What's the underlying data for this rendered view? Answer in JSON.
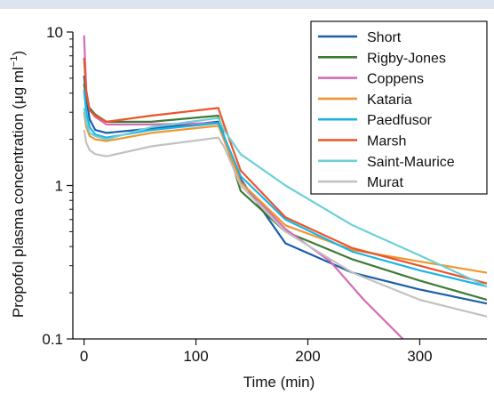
{
  "chart_data": {
    "type": "line",
    "xlabel": "Time (min)",
    "ylabel_main": "Propofol plasma concentration (μg ml",
    "ylabel_sup": "−1",
    "ylabel_close": ")",
    "xlim": [
      -10,
      360
    ],
    "ylim": [
      0.1,
      10
    ],
    "yscale": "log",
    "x_ticks": [
      0,
      100,
      200,
      300
    ],
    "x_tick_labels": [
      "0",
      "100",
      "200",
      "300"
    ],
    "y_ticks": [
      0.1,
      1,
      10
    ],
    "y_tick_labels": [
      "0.1",
      "1",
      "10"
    ],
    "grid": false,
    "legend_position": "top-right",
    "series": [
      {
        "name": "Short",
        "color": "#1a5ea8",
        "points": [
          [
            0,
            5.2
          ],
          [
            2,
            3.7
          ],
          [
            5,
            2.7
          ],
          [
            10,
            2.3
          ],
          [
            20,
            2.2
          ],
          [
            60,
            2.35
          ],
          [
            120,
            2.6
          ],
          [
            125,
            2.1
          ],
          [
            140,
            1.1
          ],
          [
            180,
            0.42
          ],
          [
            240,
            0.27
          ],
          [
            300,
            0.21
          ],
          [
            360,
            0.17
          ]
        ]
      },
      {
        "name": "Rigby-Jones",
        "color": "#3f7a35",
        "points": [
          [
            0,
            4.6
          ],
          [
            2,
            3.6
          ],
          [
            5,
            3.2
          ],
          [
            10,
            2.9
          ],
          [
            20,
            2.6
          ],
          [
            60,
            2.6
          ],
          [
            120,
            2.85
          ],
          [
            125,
            2.1
          ],
          [
            140,
            0.92
          ],
          [
            180,
            0.5
          ],
          [
            240,
            0.33
          ],
          [
            300,
            0.24
          ],
          [
            360,
            0.18
          ]
        ]
      },
      {
        "name": "Coppens",
        "color": "#d36bb6",
        "points": [
          [
            0,
            9.5
          ],
          [
            2,
            4.2
          ],
          [
            5,
            3.1
          ],
          [
            10,
            2.8
          ],
          [
            20,
            2.5
          ],
          [
            60,
            2.5
          ],
          [
            120,
            2.55
          ],
          [
            125,
            2.0
          ],
          [
            140,
            1.05
          ],
          [
            180,
            0.52
          ],
          [
            220,
            0.32
          ],
          [
            250,
            0.18
          ],
          [
            285,
            0.1
          ]
        ]
      },
      {
        "name": "Kataria",
        "color": "#f0962f",
        "points": [
          [
            0,
            3.0
          ],
          [
            2,
            2.4
          ],
          [
            5,
            2.1
          ],
          [
            10,
            2.0
          ],
          [
            20,
            1.95
          ],
          [
            60,
            2.2
          ],
          [
            120,
            2.45
          ],
          [
            125,
            2.0
          ],
          [
            140,
            1.05
          ],
          [
            180,
            0.55
          ],
          [
            240,
            0.38
          ],
          [
            300,
            0.32
          ],
          [
            360,
            0.27
          ]
        ]
      },
      {
        "name": "Paedfusor",
        "color": "#19b4e6",
        "points": [
          [
            0,
            4.2
          ],
          [
            2,
            3.0
          ],
          [
            5,
            2.4
          ],
          [
            10,
            2.15
          ],
          [
            20,
            2.05
          ],
          [
            60,
            2.3
          ],
          [
            120,
            2.55
          ],
          [
            125,
            2.1
          ],
          [
            140,
            1.15
          ],
          [
            180,
            0.6
          ],
          [
            240,
            0.37
          ],
          [
            300,
            0.28
          ],
          [
            360,
            0.22
          ]
        ]
      },
      {
        "name": "Marsh",
        "color": "#e9552b",
        "points": [
          [
            0,
            6.8
          ],
          [
            2,
            4.0
          ],
          [
            5,
            3.1
          ],
          [
            10,
            2.85
          ],
          [
            20,
            2.6
          ],
          [
            60,
            2.85
          ],
          [
            120,
            3.2
          ],
          [
            125,
            2.5
          ],
          [
            140,
            1.25
          ],
          [
            180,
            0.62
          ],
          [
            240,
            0.39
          ],
          [
            300,
            0.3
          ],
          [
            360,
            0.23
          ]
        ]
      },
      {
        "name": "Saint-Maurice",
        "color": "#6ccfd8",
        "points": [
          [
            0,
            3.2
          ],
          [
            2,
            2.6
          ],
          [
            5,
            2.2
          ],
          [
            10,
            2.1
          ],
          [
            20,
            2.0
          ],
          [
            60,
            2.4
          ],
          [
            120,
            2.75
          ],
          [
            125,
            2.3
          ],
          [
            140,
            1.6
          ],
          [
            180,
            1.0
          ],
          [
            240,
            0.55
          ],
          [
            300,
            0.35
          ],
          [
            360,
            0.22
          ]
        ]
      },
      {
        "name": "Murat",
        "color": "#c2c2c2",
        "points": [
          [
            0,
            2.3
          ],
          [
            2,
            1.9
          ],
          [
            5,
            1.7
          ],
          [
            10,
            1.6
          ],
          [
            20,
            1.55
          ],
          [
            60,
            1.8
          ],
          [
            120,
            2.05
          ],
          [
            125,
            1.8
          ],
          [
            140,
            1.0
          ],
          [
            180,
            0.5
          ],
          [
            240,
            0.27
          ],
          [
            300,
            0.18
          ],
          [
            360,
            0.14
          ]
        ]
      }
    ]
  }
}
